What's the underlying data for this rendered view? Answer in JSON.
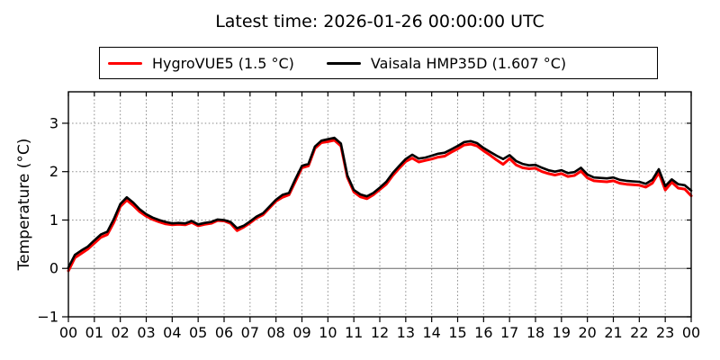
{
  "title": "Latest time: 2026-01-26 00:00:00 UTC",
  "legend": {
    "entries": [
      {
        "label": "HygroVUE5 (1.5 °C)",
        "color": "#ff0000"
      },
      {
        "label": "Vaisala HMP35D (1.607 °C)",
        "color": "#000000"
      }
    ]
  },
  "axes": {
    "y_title": "Temperature (°C)"
  },
  "colors": {
    "hygrovue5": "#ff0000",
    "vaisala": "#000000",
    "grid": "#8a8a8a",
    "zero_line": "#666666",
    "spine": "#000000"
  },
  "chart_data": {
    "type": "line",
    "title": "Latest time: 2026-01-26 00:00:00 UTC",
    "xlabel": "",
    "ylabel": "Temperature (°C)",
    "xlim": [
      0,
      24
    ],
    "ylim": [
      -1,
      3.65
    ],
    "grid": "dotted",
    "zero_line": true,
    "legend_position": "top-center-outside",
    "x_step_hours": 0.25,
    "x_ticks": [
      0,
      1,
      2,
      3,
      4,
      5,
      6,
      7,
      8,
      9,
      10,
      11,
      12,
      13,
      14,
      15,
      16,
      17,
      18,
      19,
      20,
      21,
      22,
      23,
      24
    ],
    "x_tick_labels": [
      "00",
      "01",
      "02",
      "03",
      "04",
      "05",
      "06",
      "07",
      "08",
      "09",
      "10",
      "11",
      "12",
      "13",
      "14",
      "15",
      "16",
      "17",
      "18",
      "19",
      "20",
      "21",
      "22",
      "23",
      "00"
    ],
    "y_ticks": [
      3,
      2,
      1,
      0,
      -1
    ],
    "y_tick_labels": [
      "3",
      "2",
      "1",
      "0",
      "−1"
    ],
    "series": [
      {
        "name": "HygroVUE5 (1.5 °C)",
        "color": "#ff0000",
        "linewidth": 3,
        "latest_value_c": 1.5,
        "values": [
          -0.05,
          0.22,
          0.31,
          0.4,
          0.52,
          0.64,
          0.7,
          0.95,
          1.28,
          1.41,
          1.3,
          1.17,
          1.08,
          1.01,
          0.96,
          0.92,
          0.9,
          0.91,
          0.9,
          0.95,
          0.88,
          0.91,
          0.93,
          0.99,
          0.98,
          0.93,
          0.78,
          0.85,
          0.94,
          1.04,
          1.11,
          1.25,
          1.39,
          1.47,
          1.52,
          1.8,
          2.08,
          2.12,
          2.48,
          2.6,
          2.62,
          2.65,
          2.53,
          1.88,
          1.58,
          1.48,
          1.44,
          1.52,
          1.63,
          1.74,
          1.92,
          2.07,
          2.21,
          2.28,
          2.2,
          2.23,
          2.26,
          2.3,
          2.32,
          2.4,
          2.47,
          2.55,
          2.57,
          2.53,
          2.43,
          2.34,
          2.24,
          2.15,
          2.27,
          2.14,
          2.08,
          2.06,
          2.07,
          2.0,
          1.96,
          1.93,
          1.96,
          1.9,
          1.92,
          2.01,
          1.87,
          1.81,
          1.8,
          1.79,
          1.81,
          1.76,
          1.74,
          1.73,
          1.72,
          1.68,
          1.76,
          1.98,
          1.62,
          1.78,
          1.66,
          1.64,
          1.5
        ]
      },
      {
        "name": "Vaisala HMP35D (1.607 °C)",
        "color": "#000000",
        "linewidth": 2.6,
        "latest_value_c": 1.607,
        "values": [
          0.02,
          0.28,
          0.37,
          0.45,
          0.58,
          0.7,
          0.76,
          1.02,
          1.33,
          1.47,
          1.36,
          1.22,
          1.12,
          1.05,
          1.0,
          0.96,
          0.93,
          0.94,
          0.93,
          0.98,
          0.91,
          0.94,
          0.96,
          1.01,
          1.0,
          0.96,
          0.83,
          0.88,
          0.97,
          1.07,
          1.14,
          1.28,
          1.42,
          1.52,
          1.56,
          1.85,
          2.12,
          2.16,
          2.52,
          2.64,
          2.67,
          2.7,
          2.58,
          1.92,
          1.62,
          1.53,
          1.49,
          1.56,
          1.67,
          1.79,
          1.97,
          2.12,
          2.26,
          2.35,
          2.27,
          2.29,
          2.33,
          2.37,
          2.39,
          2.46,
          2.53,
          2.61,
          2.63,
          2.59,
          2.49,
          2.41,
          2.33,
          2.26,
          2.34,
          2.22,
          2.16,
          2.13,
          2.14,
          2.08,
          2.03,
          2.0,
          2.03,
          1.97,
          1.99,
          2.08,
          1.94,
          1.88,
          1.87,
          1.86,
          1.88,
          1.83,
          1.81,
          1.8,
          1.79,
          1.75,
          1.83,
          2.05,
          1.7,
          1.84,
          1.74,
          1.72,
          1.607
        ]
      }
    ]
  }
}
